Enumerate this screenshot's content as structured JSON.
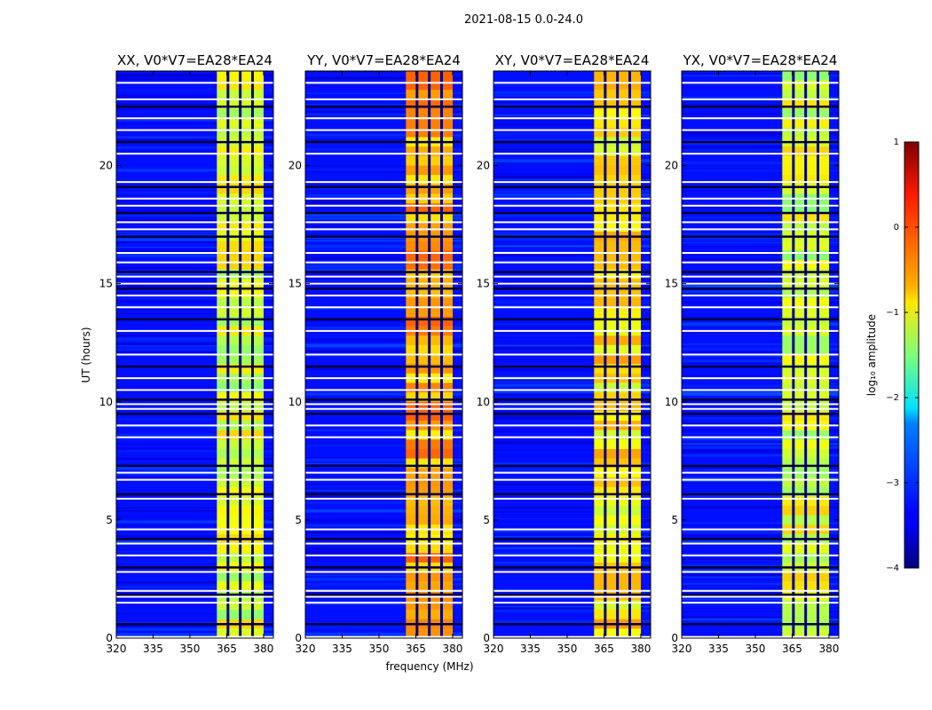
{
  "chart_data": {
    "type": "heatmap",
    "suptitle": "2021-08-15 0.0-24.0",
    "xlabel": "frequency (MHz)",
    "ylabel": "UT (hours)",
    "xlim": [
      320,
      384
    ],
    "ylim": [
      0,
      24
    ],
    "xticks": [
      320,
      335,
      350,
      365,
      380
    ],
    "yticks": [
      0,
      5,
      10,
      15,
      20
    ],
    "rfi_band_mhz": [
      361,
      380
    ],
    "rfi_band_gaps_mhz": [
      365.5,
      370.5,
      375.5
    ],
    "flagged_hours": [
      0.05,
      0.6,
      1.5,
      1.75,
      1.85,
      2.0,
      2.8,
      3.0,
      3.5,
      4.0,
      4.2,
      4.6,
      5.9,
      6.1,
      6.7,
      7.0,
      7.3,
      8.5,
      9.0,
      9.5,
      9.7,
      9.9,
      10.1,
      10.5,
      11.0,
      11.5,
      12.0,
      13.0,
      13.5,
      14.0,
      14.5,
      14.8,
      15.0,
      15.3,
      15.5,
      15.9,
      16.3,
      17.0,
      17.3,
      17.6,
      18.0,
      18.3,
      18.6,
      19.1,
      19.3,
      20.5,
      21.0,
      21.5,
      22.0,
      22.5,
      22.8,
      23.5
    ],
    "panels": [
      {
        "name": "XX",
        "title": "XX, V0*V7=EA28*EA24",
        "band_level": -1.1
      },
      {
        "name": "YY",
        "title": "YY, V0*V7=EA28*EA24",
        "band_level": -0.5
      },
      {
        "name": "XY",
        "title": "XY, V0*V7=EA28*EA24",
        "band_level": -0.8
      },
      {
        "name": "YX",
        "title": "YX, V0*V7=EA28*EA24",
        "band_level": -1.1
      }
    ],
    "colorbar": {
      "label": "log₁₀ amplitude",
      "range": [
        -4,
        1
      ],
      "ticks": [
        "1",
        "0",
        "−1",
        "−2",
        "−3",
        "−4"
      ],
      "colormap": "jet",
      "background_level": -3.3
    }
  }
}
